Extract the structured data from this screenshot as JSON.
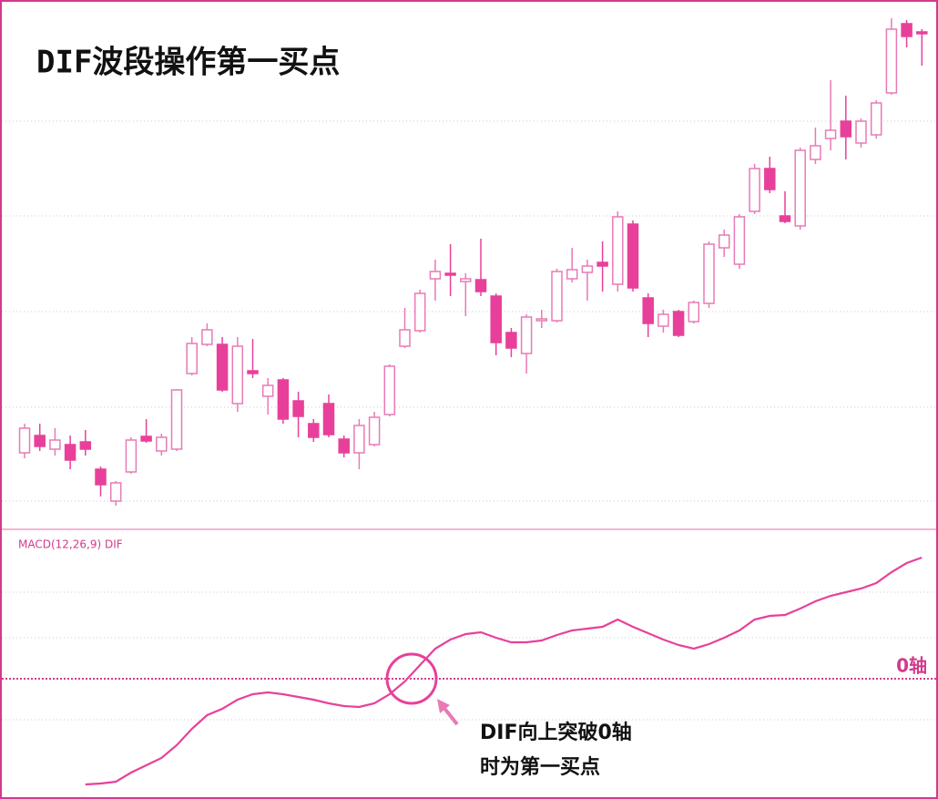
{
  "chart_data": [
    {
      "type": "candlestick",
      "title": "DIF波段操作第一买点",
      "open": [
        83,
        102,
        87,
        92,
        95,
        65,
        30,
        62,
        101,
        85,
        87,
        170,
        202,
        202,
        137,
        173,
        145,
        163,
        140,
        115,
        137,
        98,
        83,
        92,
        125,
        200,
        217,
        274,
        280,
        271,
        273,
        255,
        215,
        192,
        228,
        228,
        274,
        281,
        292,
        268,
        334,
        253,
        222,
        238,
        227,
        247,
        308,
        290,
        348,
        395,
        343,
        332,
        405,
        428,
        447,
        423,
        432,
        478,
        554,
        545
      ],
      "high": [
        115,
        115,
        110,
        102,
        108,
        68,
        52,
        100,
        120,
        104,
        153,
        210,
        225,
        210,
        210,
        208,
        165,
        165,
        150,
        120,
        147,
        102,
        120,
        128,
        180,
        242,
        262,
        295,
        312,
        280,
        318,
        258,
        220,
        235,
        240,
        285,
        308,
        295,
        315,
        348,
        338,
        258,
        240,
        240,
        250,
        315,
        328,
        345,
        400,
        408,
        370,
        418,
        440,
        492,
        475,
        450,
        470,
        560,
        558,
        548
      ],
      "low": [
        77,
        85,
        80,
        65,
        80,
        35,
        25,
        60,
        94,
        80,
        85,
        168,
        200,
        150,
        128,
        165,
        125,
        115,
        100,
        95,
        100,
        78,
        65,
        90,
        123,
        198,
        215,
        250,
        255,
        233,
        255,
        190,
        188,
        170,
        220,
        226,
        270,
        250,
        260,
        260,
        260,
        210,
        215,
        210,
        225,
        242,
        298,
        285,
        345,
        368,
        335,
        328,
        400,
        415,
        405,
        418,
        428,
        476,
        528,
        508
      ],
      "close": [
        110,
        90,
        97,
        75,
        87,
        48,
        50,
        97,
        96,
        100,
        152,
        203,
        218,
        152,
        200,
        170,
        157,
        120,
        123,
        100,
        103,
        83,
        113,
        122,
        178,
        218,
        258,
        282,
        278,
        274,
        260,
        204,
        198,
        232,
        230,
        282,
        284,
        288,
        288,
        342,
        264,
        225,
        235,
        212,
        248,
        312,
        322,
        342,
        395,
        372,
        337,
        415,
        420,
        437,
        430,
        447,
        467,
        548,
        540,
        543
      ],
      "ylim": [
        0,
        565
      ],
      "yticks": [
        30,
        133,
        238,
        343,
        447
      ],
      "grid": true,
      "up_color": "#e87ab5",
      "down_color": "#e8409a"
    },
    {
      "type": "line",
      "title": "MACD(12,26,9) DIF",
      "values": [
        null,
        null,
        null,
        null,
        -116,
        -115,
        -113,
        -103,
        -95,
        -87,
        -73,
        -55,
        -40,
        -33,
        -23,
        -17,
        -15,
        -17,
        -20,
        -23,
        -27,
        -30,
        -31,
        -27,
        -17,
        -3,
        15,
        33,
        43,
        49,
        51,
        45,
        40,
        40,
        42,
        48,
        53,
        55,
        57,
        65,
        57,
        50,
        43,
        37,
        33,
        38,
        45,
        53,
        65,
        69,
        70,
        77,
        85,
        91,
        95,
        99,
        105,
        117,
        127,
        133
      ],
      "color": "#e8409a",
      "ylim": [
        -117,
        162
      ],
      "yticks": [
        -45,
        0,
        45,
        95
      ],
      "grid": true,
      "annotations": [
        "0轴",
        "DIF向上突破0轴",
        "时为第一买点"
      ]
    }
  ]
}
